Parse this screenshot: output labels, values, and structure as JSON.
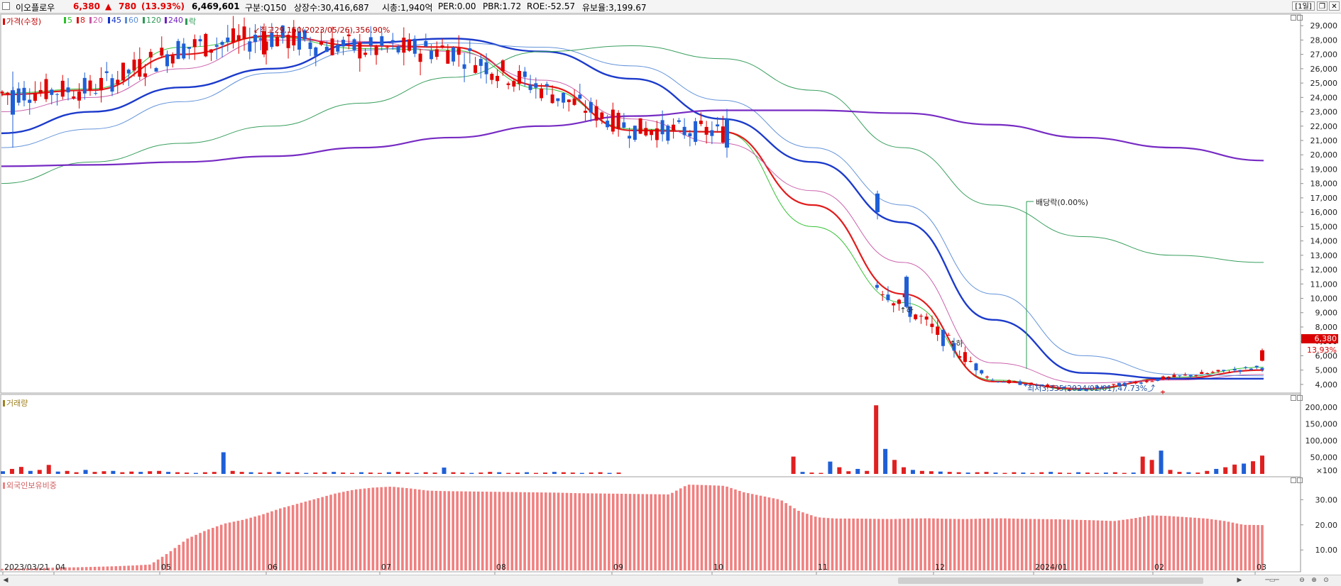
{
  "header": {
    "stock_name": "이오플로우",
    "price": "6,380",
    "change_arrow": "▲",
    "change": "780",
    "change_pct": "(13.93%)",
    "volume": "6,469,601",
    "category": "구분:Q150",
    "shares": "상장수:30,416,687",
    "market_cap": "시총:1,940억",
    "per": "PER:0.00",
    "pbr": "PBR:1.72",
    "roe": "ROE:-52.57",
    "reserve": "유보율:3,199.67",
    "period_button": "[1일]"
  },
  "legend": {
    "price_label": "가격(수정)",
    "ma_labels": [
      "5",
      "8",
      "20",
      "45",
      "60",
      "120",
      "240"
    ],
    "drop_label": "락"
  },
  "colors": {
    "up": "#e00000",
    "down": "#1f5fd6",
    "ma5": "#2bbf2b",
    "ma8": "#e01010",
    "ma20": "#c85aa8",
    "ma45": "#1030c8",
    "ma60": "#5c8ed8",
    "ma120": "#2e9a55",
    "ma240": "#7020c0",
    "volume_up": "#e02020",
    "volume_down": "#1f5fd6",
    "foreign": "#f08080"
  },
  "annotations": {
    "high": "최고29,150(2023/05/26),356.90%",
    "low": "최저3,335(2024/02/01),47.73%",
    "dividend": "배당락(0.00%)",
    "limit_down": "하"
  },
  "price_tags": {
    "price": "6,380",
    "pct": "13.93%"
  },
  "panels": {
    "volume_label": "거래량",
    "foreign_label": "외국인보유비중"
  },
  "chart_data": [
    {
      "type": "candlestick",
      "title": "",
      "y_ticks": [
        "4,000",
        "5,000",
        "6,000",
        "7,000",
        "8,000",
        "9,000",
        "10,000",
        "11,000",
        "12,000",
        "13,000",
        "14,000",
        "15,000",
        "16,000",
        "17,000",
        "18,000",
        "19,000",
        "20,000",
        "21,000",
        "22,000",
        "23,000",
        "24,000",
        "25,000",
        "26,000",
        "27,000",
        "28,000",
        "29,000"
      ],
      "ylim": [
        3400,
        29800
      ],
      "x_labels": [
        "2023/03/21",
        "04",
        "05",
        "06",
        "07",
        "08",
        "09",
        "10",
        "11",
        "12",
        "2024/01",
        "02",
        "03"
      ],
      "ohlc_sample": [
        {
          "date": "2023/03/21",
          "open": 24500,
          "high": 25800,
          "low": 20500,
          "close": 22800
        },
        {
          "date": "2023/05/26",
          "open": 27000,
          "high": 29150,
          "low": 26800,
          "close": 28600
        },
        {
          "date": "2023/10/20",
          "open": 22500,
          "high": 23200,
          "low": 19800,
          "close": 20500
        },
        {
          "date": "2023/11/21",
          "open": 17300,
          "high": 17500,
          "low": 15500,
          "close": 16000
        },
        {
          "date": "2023/12/04",
          "open": 11500,
          "high": 11600,
          "low": 9300,
          "close": 9400
        },
        {
          "date": "2024/02/01",
          "open": 3450,
          "high": 3600,
          "low": 3335,
          "close": 3500
        },
        {
          "date": "2024/03/04",
          "open": 5650,
          "high": 6500,
          "low": 5600,
          "close": 6380
        }
      ],
      "series": [
        {
          "name": "5",
          "values": [
            24300,
            24600,
            27500,
            28200,
            27400,
            27300,
            24600,
            21800,
            21600,
            15000,
            9700,
            4300,
            3600,
            4500,
            5200
          ]
        },
        {
          "name": "8",
          "values": [
            24200,
            24500,
            27000,
            28300,
            27600,
            27500,
            24800,
            21700,
            21600,
            16500,
            10300,
            4200,
            3700,
            4400,
            5000
          ]
        },
        {
          "name": "20",
          "values": [
            23000,
            24000,
            26000,
            28000,
            27900,
            27200,
            25200,
            22500,
            20800,
            17500,
            12500,
            5500,
            4100,
            4300,
            4700
          ]
        },
        {
          "name": "45",
          "values": [
            21500,
            23000,
            24700,
            26000,
            27800,
            28100,
            27200,
            25300,
            22500,
            19500,
            15300,
            8500,
            4800,
            4400,
            4400
          ]
        },
        {
          "name": "60",
          "values": [
            20500,
            21800,
            23700,
            25700,
            27300,
            27800,
            27500,
            26200,
            23800,
            20500,
            16500,
            10300,
            6000,
            4700,
            4600
          ]
        },
        {
          "name": "120",
          "values": [
            18000,
            19500,
            20800,
            22000,
            23600,
            25400,
            27200,
            27600,
            26700,
            24500,
            20500,
            16500,
            14300,
            13000,
            12500
          ]
        },
        {
          "name": "240",
          "values": [
            19200,
            19300,
            19500,
            19900,
            20500,
            21200,
            22000,
            22700,
            23100,
            23100,
            22900,
            22100,
            21200,
            20500,
            19600
          ]
        }
      ]
    },
    {
      "type": "bar",
      "title": "",
      "y_ticks": [
        "×100",
        "50,000",
        "100,000",
        "150,000",
        "200,000"
      ],
      "ylim": [
        0,
        230000
      ],
      "values": [
        8000,
        15000,
        21000,
        9000,
        12000,
        27000,
        7000,
        9000,
        5000,
        12000,
        6000,
        8000,
        9000,
        5000,
        7000,
        6000,
        8000,
        9000,
        6000,
        5000,
        4000,
        3000,
        5000,
        6000,
        65000,
        9000,
        6000,
        5000,
        4000,
        5000,
        6000,
        4000,
        5000,
        3000,
        4000,
        5000,
        6000,
        4000,
        3000,
        5000,
        4000,
        3000,
        5000,
        6000,
        4000,
        3000,
        5000,
        4000,
        19000,
        5000,
        4000,
        3000,
        4000,
        6000,
        5000,
        3000,
        4000,
        5000,
        3000,
        4000,
        6000,
        5000,
        4000,
        3000,
        4000,
        5000,
        3000,
        4000,
        0,
        0,
        0,
        0,
        0,
        0,
        0,
        0,
        0,
        0,
        0,
        0,
        0,
        0,
        0,
        0,
        0,
        0,
        52000,
        6000,
        4000,
        3000,
        37000,
        20000,
        8000,
        15000,
        9000,
        206000,
        75000,
        42000,
        20000,
        12000,
        9000,
        8000,
        7000,
        6000,
        5000,
        4000,
        5000,
        6000,
        4000,
        3000,
        5000,
        4000,
        3000,
        5000,
        6000,
        4000,
        3000,
        5000,
        4000,
        3000,
        4000,
        5000,
        3000,
        4000,
        52000,
        42000,
        70000,
        12000,
        6000,
        5000,
        4000,
        9000,
        15000,
        20000,
        28000,
        31000,
        38000,
        55000
      ]
    },
    {
      "type": "bar",
      "title": "",
      "y_ticks": [
        "10.00",
        "20.00",
        "30.00"
      ],
      "ylim": [
        3,
        38
      ],
      "values": [
        2.5,
        2.6,
        2.8,
        3.0,
        3.1,
        3.3,
        3.5,
        3.8,
        4.2,
        9.0,
        14.5,
        17.8,
        20.5,
        22.0,
        24.0,
        26.5,
        28.5,
        30.5,
        32.5,
        34.0,
        34.8,
        35.2,
        34.5,
        33.6,
        33.4,
        33.3,
        33.2,
        33.1,
        33.0,
        32.9,
        32.8,
        32.6,
        32.5,
        32.4,
        32.3,
        32.2,
        32.1,
        36.0,
        35.8,
        35.5,
        33.0,
        31.5,
        30.0,
        25.5,
        23.0,
        22.5,
        22.5,
        22.4,
        22.3,
        22.5,
        22.6,
        22.4,
        22.3,
        22.5,
        22.6,
        22.4,
        22.3,
        22.2,
        22.0,
        21.8,
        21.5,
        22.5,
        23.8,
        23.5,
        23.0,
        22.5,
        21.5,
        20.0,
        19.9
      ]
    }
  ]
}
